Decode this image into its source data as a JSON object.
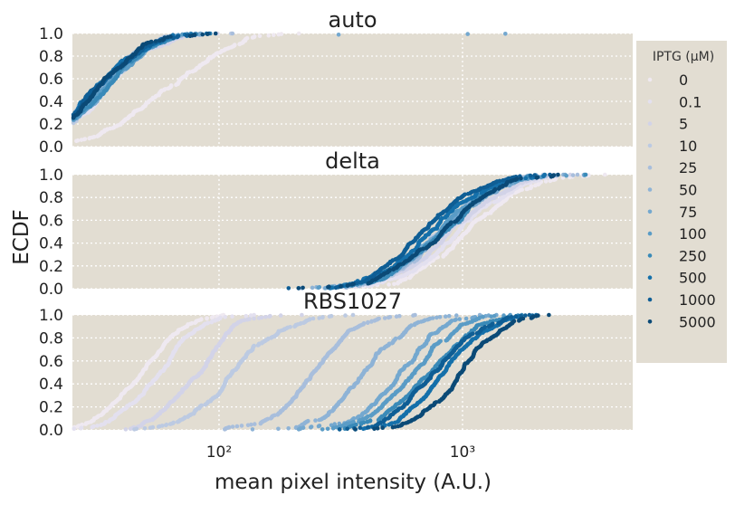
{
  "chart_data": {
    "type": "scatter",
    "figure": {
      "xlabel": "mean pixel intensity (A.U.)",
      "ylabel": "ECDF",
      "xscale": "log",
      "xlim": [
        25,
        5000
      ],
      "ylim": [
        0,
        1
      ],
      "x_ticks": [
        100,
        1000
      ],
      "x_tick_labels": [
        "10²",
        "10³"
      ],
      "y_ticks": [
        0.0,
        0.2,
        0.4,
        0.6,
        0.8,
        1.0
      ],
      "y_tick_labels": [
        "0.0",
        "0.2",
        "0.4",
        "0.6",
        "0.8",
        "1.0"
      ],
      "grid": true,
      "background": "#e2ddd2",
      "legend": {
        "title": "IPTG (μM)",
        "placement": "right",
        "entries": [
          "0",
          "0.1",
          "5",
          "10",
          "25",
          "50",
          "75",
          "100",
          "250",
          "500",
          "1000",
          "5000"
        ],
        "colors": [
          "#efe9f1",
          "#e3e0ef",
          "#d2d3e8",
          "#bccae2",
          "#a8bedc",
          "#8eb3d6",
          "#74a8cf",
          "#5a9cc6",
          "#3a8ab8",
          "#1570aa",
          "#0f5e95",
          "#0b4a77"
        ]
      }
    },
    "panels": [
      {
        "title": "auto",
        "series": [
          {
            "iptg": "0",
            "median": 60,
            "spread": 0.22
          },
          {
            "iptg": "0.1",
            "median": 34,
            "spread": 0.17
          },
          {
            "iptg": "5",
            "median": 33,
            "spread": 0.17
          },
          {
            "iptg": "10",
            "median": 32,
            "spread": 0.17
          },
          {
            "iptg": "25",
            "median": 33,
            "spread": 0.17
          },
          {
            "iptg": "50",
            "median": 32,
            "spread": 0.17
          },
          {
            "iptg": "75",
            "median": 33,
            "spread": 0.17
          },
          {
            "iptg": "100",
            "median": 32,
            "spread": 0.17
          },
          {
            "iptg": "250",
            "median": 33,
            "spread": 0.17
          },
          {
            "iptg": "500",
            "median": 32,
            "spread": 0.17
          },
          {
            "iptg": "1000",
            "median": 31,
            "spread": 0.17
          },
          {
            "iptg": "5000",
            "median": 31,
            "spread": 0.17
          }
        ],
        "outliers": [
          {
            "x": 1050,
            "y": 0.995
          },
          {
            "x": 1500,
            "y": 0.998
          },
          {
            "x": 310,
            "y": 0.99
          }
        ]
      },
      {
        "title": "delta",
        "series": [
          {
            "iptg": "0",
            "median": 1050,
            "spread": 0.19
          },
          {
            "iptg": "0.1",
            "median": 920,
            "spread": 0.19
          },
          {
            "iptg": "5",
            "median": 880,
            "spread": 0.19
          },
          {
            "iptg": "10",
            "median": 850,
            "spread": 0.19
          },
          {
            "iptg": "25",
            "median": 860,
            "spread": 0.19
          },
          {
            "iptg": "50",
            "median": 820,
            "spread": 0.19
          },
          {
            "iptg": "75",
            "median": 800,
            "spread": 0.19
          },
          {
            "iptg": "100",
            "median": 780,
            "spread": 0.19
          },
          {
            "iptg": "250",
            "median": 790,
            "spread": 0.19
          },
          {
            "iptg": "500",
            "median": 760,
            "spread": 0.19
          },
          {
            "iptg": "1000",
            "median": 740,
            "spread": 0.19
          },
          {
            "iptg": "5000",
            "median": 800,
            "spread": 0.19
          }
        ]
      },
      {
        "title": "RBS1027",
        "series": [
          {
            "iptg": "0",
            "median": 48,
            "spread": 0.14
          },
          {
            "iptg": "0.1",
            "median": 58,
            "spread": 0.14
          },
          {
            "iptg": "5",
            "median": 78,
            "spread": 0.14
          },
          {
            "iptg": "10",
            "median": 118,
            "spread": 0.15
          },
          {
            "iptg": "25",
            "median": 245,
            "spread": 0.15
          },
          {
            "iptg": "50",
            "median": 390,
            "spread": 0.15
          },
          {
            "iptg": "75",
            "median": 560,
            "spread": 0.15
          },
          {
            "iptg": "100",
            "median": 610,
            "spread": 0.15
          },
          {
            "iptg": "250",
            "median": 720,
            "spread": 0.15
          },
          {
            "iptg": "500",
            "median": 880,
            "spread": 0.15
          },
          {
            "iptg": "1000",
            "median": 800,
            "spread": 0.15
          },
          {
            "iptg": "5000",
            "median": 1000,
            "spread": 0.15
          }
        ]
      }
    ]
  }
}
